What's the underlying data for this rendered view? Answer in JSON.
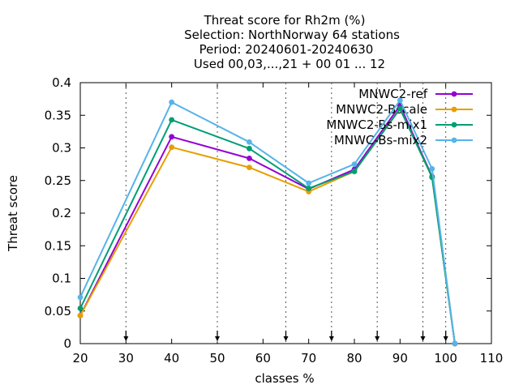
{
  "chart_data": {
    "type": "line",
    "title_lines": [
      "Threat score  for Rh2m (%)",
      "Selection: NorthNorway     64 stations",
      "Period: 20240601-20240630",
      "Used 00,03,...,21 + 00 01 ... 12"
    ],
    "xlabel": "classes %",
    "ylabel": "Threat score",
    "xlim": [
      20,
      110
    ],
    "ylim": [
      0,
      0.4
    ],
    "x_ticks": [
      "20",
      "30",
      "40",
      "50",
      "60",
      "70",
      "80",
      "90",
      "100",
      "110"
    ],
    "y_ticks": [
      "0",
      "0.05",
      "0.1",
      "0.15",
      "0.2",
      "0.25",
      "0.3",
      "0.35",
      "0.4"
    ],
    "class_markers": [
      30,
      50,
      65,
      75,
      85,
      95,
      100
    ],
    "x": [
      20,
      40,
      57,
      70,
      80,
      90,
      97,
      102
    ],
    "series": [
      {
        "name": "MNWC2-ref",
        "color": "#9400d3",
        "values": [
          0.043,
          0.317,
          0.284,
          0.237,
          0.267,
          0.365,
          0.256,
          0.0
        ]
      },
      {
        "name": "MNWC2-Bscale",
        "color": "#e69f00",
        "values": [
          0.043,
          0.301,
          0.27,
          0.233,
          0.264,
          0.36,
          0.255,
          0.0
        ]
      },
      {
        "name": "MNWC2-Bs-mix1",
        "color": "#009e73",
        "values": [
          0.054,
          0.343,
          0.299,
          0.238,
          0.264,
          0.36,
          0.255,
          0.0
        ]
      },
      {
        "name": "MNWC-Bs-mix2",
        "color": "#56b4e9",
        "values": [
          0.071,
          0.37,
          0.309,
          0.246,
          0.275,
          0.373,
          0.268,
          0.0
        ]
      }
    ]
  }
}
